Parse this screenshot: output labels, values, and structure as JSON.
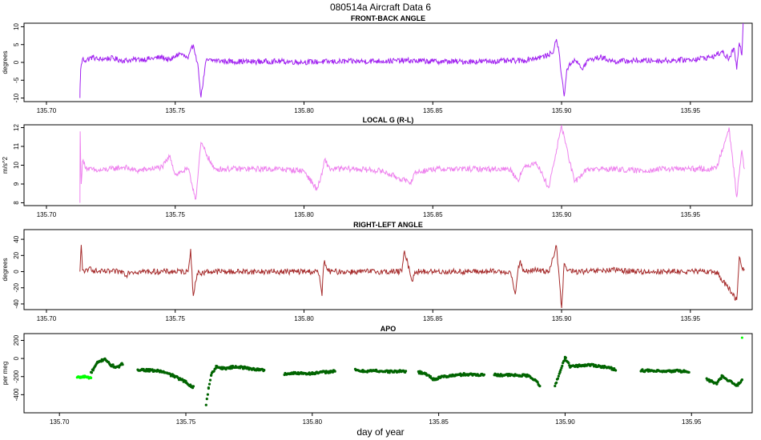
{
  "figure": {
    "title": "080514a   Aircraft Data 6",
    "xlabel": "day of year"
  },
  "colors": {
    "front_back": "#a020f0",
    "local_g": "#ee82ee",
    "right_left": "#a52a2a",
    "apo_dark": "#006400",
    "apo_light": "#00ff00",
    "axis": "#000000"
  },
  "chart_data": [
    {
      "type": "line",
      "title": "FRONT-BACK ANGLE",
      "ylabel": "degrees",
      "xlim": [
        135.6913,
        135.974
      ],
      "ylim": [
        -11,
        11
      ],
      "xticks": [
        "135.70",
        "135.75",
        "135.80",
        "135.85",
        "135.90",
        "135.95"
      ],
      "yticks": [
        "-10",
        "-5",
        "0",
        "5",
        "10"
      ],
      "series": [
        {
          "x": [
            135.713,
            135.7131,
            135.7133,
            135.714,
            135.715,
            135.718,
            135.72,
            135.725,
            135.73,
            135.735,
            135.74,
            135.745,
            135.748,
            135.75,
            135.752,
            135.755,
            135.757,
            135.758,
            135.759,
            135.76,
            135.762,
            135.765,
            135.77,
            135.78,
            135.79,
            135.8,
            135.81,
            135.82,
            135.83,
            135.84,
            135.85,
            135.86,
            135.87,
            135.88,
            135.885,
            135.888,
            135.892,
            135.895,
            135.897,
            135.898,
            135.899,
            135.9,
            135.901,
            135.902,
            135.905,
            135.908,
            135.91,
            135.915,
            135.92,
            135.93,
            135.94,
            135.95,
            135.958,
            135.96,
            135.962,
            135.965,
            135.967,
            135.968,
            135.969,
            135.97,
            135.9705
          ],
          "y": [
            -10,
            -6,
            -2,
            1,
            0.5,
            1.5,
            0.8,
            1.2,
            0.5,
            0.8,
            1.0,
            1.5,
            0.5,
            1.8,
            2.5,
            1.0,
            5.0,
            2.0,
            -2.0,
            -9.8,
            0.5,
            0.6,
            0.3,
            0.2,
            0.3,
            0.1,
            0.2,
            0.3,
            0.4,
            0.5,
            0.3,
            0.2,
            0.3,
            0.4,
            0.5,
            1.0,
            1.5,
            2.0,
            3.5,
            6.5,
            3.0,
            -4.0,
            -9.5,
            -2.0,
            1.0,
            -2.0,
            0.5,
            1.5,
            0.3,
            0.5,
            0.5,
            0.8,
            1.5,
            2.0,
            3.0,
            1.0,
            4.0,
            -2.0,
            5.5,
            2.0,
            11
          ]
        }
      ]
    },
    {
      "type": "line",
      "title": "LOCAL G (R-L)",
      "ylabel": "m/s^2",
      "xlim": [
        135.6913,
        135.974
      ],
      "ylim": [
        7.85,
        12.15
      ],
      "xticks": [
        "135.70",
        "135.75",
        "135.80",
        "135.85",
        "135.90",
        "135.95"
      ],
      "yticks": [
        "8",
        "9",
        "10",
        "11",
        "12"
      ],
      "series": [
        {
          "x": [
            135.713,
            135.7131,
            135.7135,
            135.714,
            135.716,
            135.72,
            135.725,
            135.73,
            135.735,
            135.74,
            135.745,
            135.748,
            135.75,
            135.755,
            135.758,
            135.76,
            135.765,
            135.77,
            135.78,
            135.79,
            135.8,
            135.805,
            135.807,
            135.808,
            135.81,
            135.82,
            135.83,
            135.839,
            135.841,
            135.843,
            135.85,
            135.86,
            135.87,
            135.88,
            135.883,
            135.885,
            135.89,
            135.895,
            135.9,
            135.905,
            135.91,
            135.92,
            135.93,
            135.94,
            135.95,
            135.96,
            135.965,
            135.968,
            135.97,
            135.971
          ],
          "y": [
            8.0,
            11.8,
            9.0,
            10.2,
            9.8,
            9.7,
            9.8,
            9.9,
            9.7,
            9.8,
            9.9,
            10.5,
            9.5,
            9.8,
            8.2,
            11.2,
            9.8,
            9.8,
            9.8,
            9.8,
            9.7,
            8.7,
            9.5,
            10.3,
            9.8,
            9.8,
            9.7,
            9.2,
            9.0,
            9.6,
            9.8,
            9.8,
            9.8,
            9.8,
            9.2,
            9.8,
            10.2,
            8.8,
            12.1,
            9.1,
            9.8,
            9.8,
            9.7,
            9.8,
            9.8,
            9.8,
            12.0,
            8.3,
            10.8,
            9.8
          ]
        }
      ]
    },
    {
      "type": "line",
      "title": "RIGHT-LEFT ANGLE",
      "ylabel": "degrees",
      "xlim": [
        135.6913,
        135.974
      ],
      "ylim": [
        -47,
        52
      ],
      "xticks": [
        "135.70",
        "135.75",
        "135.80",
        "135.85",
        "135.90",
        "135.95"
      ],
      "yticks": [
        "-40",
        "-20",
        "0",
        "20",
        "40"
      ],
      "series": [
        {
          "x": [
            135.713,
            135.7135,
            135.714,
            135.716,
            135.717,
            135.718,
            135.72,
            135.73,
            135.731,
            135.732,
            135.733,
            135.74,
            135.755,
            135.756,
            135.757,
            135.758,
            135.759,
            135.76,
            135.762,
            135.77,
            135.78,
            135.8,
            135.805,
            135.806,
            135.807,
            135.8075,
            135.808,
            135.809,
            135.81,
            135.82,
            135.838,
            135.839,
            135.841,
            135.842,
            135.843,
            135.845,
            135.85,
            135.86,
            135.87,
            135.88,
            135.882,
            135.883,
            135.884,
            135.885,
            135.89,
            135.895,
            135.898,
            135.9,
            135.901,
            135.902,
            135.905,
            135.91,
            135.92,
            135.93,
            135.94,
            135.95,
            135.955,
            135.96,
            135.968,
            135.969,
            135.97,
            135.971
          ],
          "y": [
            0,
            33,
            2,
            0,
            6,
            2,
            0,
            0,
            -5,
            0,
            0,
            0,
            0,
            28,
            -30,
            -12,
            2,
            -3,
            0,
            0,
            0,
            0,
            0,
            -5,
            -30,
            2,
            14,
            2,
            0,
            0,
            0,
            26,
            1,
            -12,
            0,
            0,
            0,
            0,
            0,
            0,
            -28,
            0,
            14,
            0,
            2,
            0,
            32,
            -45,
            10,
            2,
            0,
            0,
            2,
            0,
            0,
            0,
            0,
            0,
            -35,
            18,
            5,
            3
          ]
        }
      ]
    },
    {
      "type": "scatter",
      "title": "APO",
      "ylabel": "per meg",
      "xlim": [
        135.686,
        135.974
      ],
      "ylim": [
        -600,
        275
      ],
      "xticks": [
        "135.70",
        "135.75",
        "135.80",
        "135.85",
        "135.90",
        "135.95"
      ],
      "yticks": [
        "-400",
        "-200",
        "0",
        "200"
      ],
      "segments": [
        {
          "x": [
            135.707,
            135.71,
            135.7125
          ],
          "y": [
            -210,
            -200,
            -215
          ],
          "color": "light"
        },
        {
          "x": [
            135.7125,
            135.715,
            135.718,
            135.72,
            135.723,
            135.725
          ],
          "y": [
            -160,
            -50,
            0,
            -70,
            -100,
            -60
          ],
          "color": "dark"
        },
        {
          "x": [
            135.731,
            135.735,
            135.74,
            135.745,
            135.75,
            135.753
          ],
          "y": [
            -120,
            -130,
            -140,
            -190,
            -260,
            -320
          ],
          "color": "dark"
        },
        {
          "x": [
            135.758,
            135.759,
            135.76,
            135.762,
            135.765,
            135.77,
            135.775,
            135.781
          ],
          "y": [
            -510,
            -330,
            -180,
            -90,
            -110,
            -90,
            -110,
            -130
          ],
          "color": "dark"
        },
        {
          "x": [
            135.789,
            135.795,
            135.8,
            135.805,
            135.809
          ],
          "y": [
            -170,
            -160,
            -165,
            -150,
            -140
          ],
          "color": "dark"
        },
        {
          "x": [
            135.817,
            135.82,
            135.825,
            135.83,
            135.837
          ],
          "y": [
            -130,
            -140,
            -135,
            -145,
            -140
          ],
          "color": "dark"
        },
        {
          "x": [
            135.842,
            135.845,
            135.848,
            135.852,
            135.86,
            135.868
          ],
          "y": [
            -150,
            -170,
            -230,
            -200,
            -175,
            -180
          ],
          "color": "dark"
        },
        {
          "x": [
            135.872,
            135.88,
            135.885,
            135.888,
            135.89
          ],
          "y": [
            -180,
            -185,
            -190,
            -230,
            -310
          ],
          "color": "dark"
        },
        {
          "x": [
            135.896,
            135.898,
            135.9,
            135.902,
            135.905,
            135.91,
            135.915,
            135.92
          ],
          "y": [
            -300,
            -150,
            10,
            -90,
            -80,
            -70,
            -90,
            -120
          ],
          "color": "dark"
        },
        {
          "x": [
            135.93,
            135.935,
            135.94,
            135.945,
            135.949
          ],
          "y": [
            -130,
            -140,
            -145,
            -135,
            -150
          ],
          "color": "dark"
        },
        {
          "x": [
            135.956,
            135.96,
            135.962,
            135.965,
            135.968,
            135.97
          ],
          "y": [
            -230,
            -280,
            -200,
            -250,
            -300,
            -230
          ],
          "color": "dark"
        },
        {
          "x": [
            135.97
          ],
          "y": [
            230
          ],
          "color": "light"
        }
      ]
    }
  ]
}
